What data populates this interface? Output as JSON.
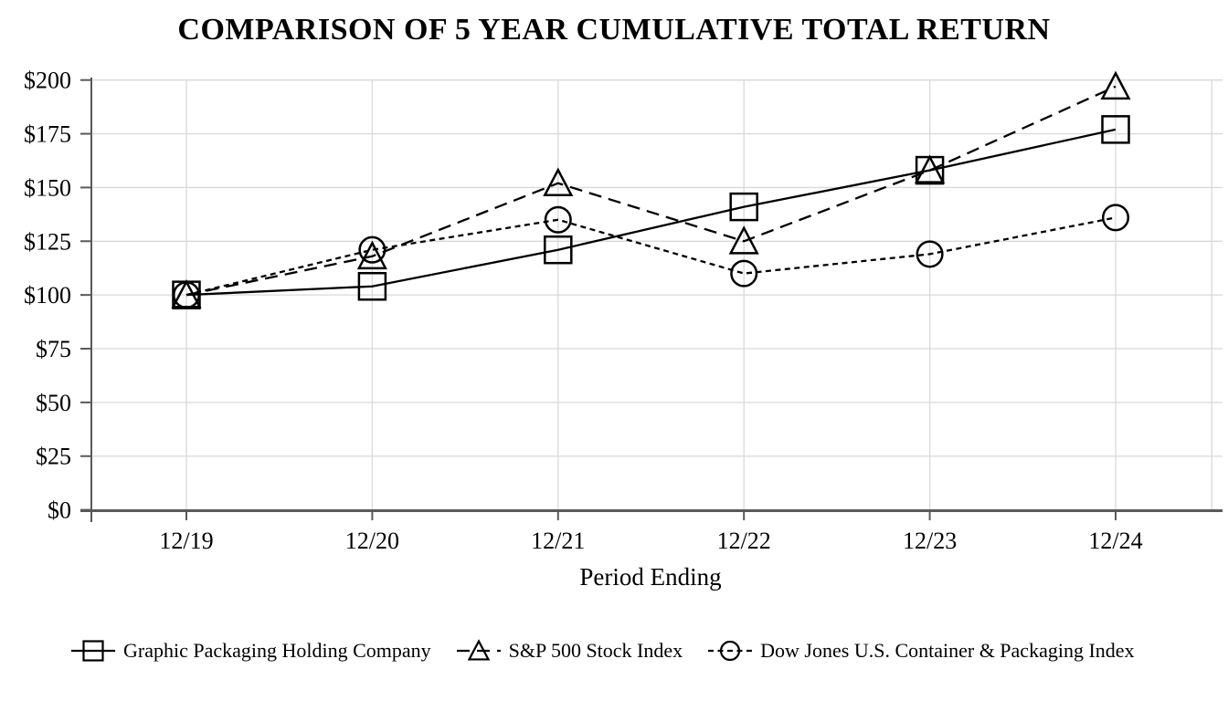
{
  "page": {
    "background": "#ffffff"
  },
  "chart_data": {
    "type": "line",
    "title": "COMPARISON OF 5 YEAR CUMULATIVE TOTAL RETURN",
    "xlabel": "Period Ending",
    "ylabel": "",
    "categories": [
      "12/19",
      "12/20",
      "12/21",
      "12/22",
      "12/23",
      "12/24"
    ],
    "y_ticks": [
      {
        "value": 200,
        "label": "$200"
      },
      {
        "value": 175,
        "label": "$175"
      },
      {
        "value": 150,
        "label": "$150"
      },
      {
        "value": 125,
        "label": "$125"
      },
      {
        "value": 100,
        "label": "$100"
      },
      {
        "value": 75,
        "label": "$75"
      },
      {
        "value": 50,
        "label": "$50"
      },
      {
        "value": 25,
        "label": "$25"
      },
      {
        "value": 0,
        "label": "$0"
      }
    ],
    "ylim": [
      0,
      200
    ],
    "grid": true,
    "legend_position": "bottom",
    "series": [
      {
        "name": "Graphic Packaging Holding Company",
        "marker": "square",
        "line_style": "solid",
        "color": "#000000",
        "values": [
          100,
          104,
          121,
          141,
          158,
          177
        ]
      },
      {
        "name": "S&P 500 Stock Index",
        "marker": "triangle",
        "line_style": "long-dash",
        "color": "#000000",
        "values": [
          100,
          118,
          152,
          125,
          158,
          197
        ]
      },
      {
        "name": "Dow Jones U.S. Container & Packaging Index",
        "marker": "circle",
        "line_style": "short-dash",
        "color": "#000000",
        "values": [
          100,
          121,
          135,
          110,
          119,
          136
        ]
      }
    ],
    "colors": {
      "grid": "#d9d9d9",
      "axis": "#595959",
      "text": "#000000",
      "background": "#ffffff"
    }
  }
}
